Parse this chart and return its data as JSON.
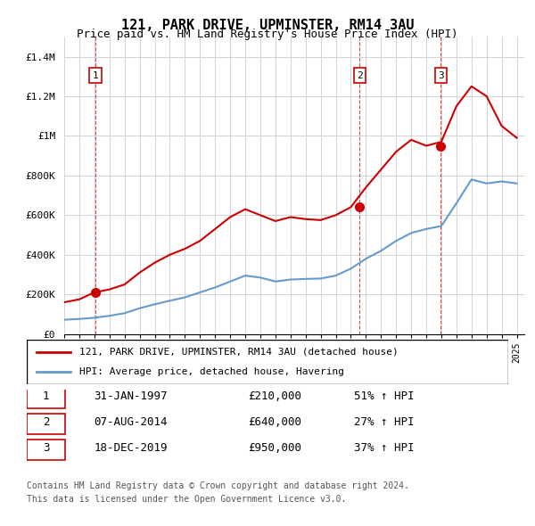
{
  "title": "121, PARK DRIVE, UPMINSTER, RM14 3AU",
  "subtitle": "Price paid vs. HM Land Registry's House Price Index (HPI)",
  "ylabel_ticks": [
    "£0",
    "£200K",
    "£400K",
    "£600K",
    "£800K",
    "£1M",
    "£1.2M",
    "£1.4M"
  ],
  "ytick_values": [
    0,
    200000,
    400000,
    600000,
    800000,
    1000000,
    1200000,
    1400000
  ],
  "ylim": [
    0,
    1500000
  ],
  "xlim_start": 1995.0,
  "xlim_end": 2025.5,
  "sale_dates": [
    1997.08,
    2014.58,
    2019.96
  ],
  "sale_prices": [
    210000,
    640000,
    950000
  ],
  "sale_labels": [
    "1",
    "2",
    "3"
  ],
  "hpi_color": "#6699cc",
  "sale_color": "#cc0000",
  "vline_color": "#cc0000",
  "legend_items": [
    {
      "label": "121, PARK DRIVE, UPMINSTER, RM14 3AU (detached house)",
      "color": "#cc0000"
    },
    {
      "label": "HPI: Average price, detached house, Havering",
      "color": "#6699cc"
    }
  ],
  "table_rows": [
    {
      "num": "1",
      "date": "31-JAN-1997",
      "price": "£210,000",
      "change": "51% ↑ HPI"
    },
    {
      "num": "2",
      "date": "07-AUG-2014",
      "price": "£640,000",
      "change": "27% ↑ HPI"
    },
    {
      "num": "3",
      "date": "18-DEC-2019",
      "price": "£950,000",
      "change": "37% ↑ HPI"
    }
  ],
  "footnote1": "Contains HM Land Registry data © Crown copyright and database right 2024.",
  "footnote2": "This data is licensed under the Open Government Licence v3.0.",
  "hpi_years": [
    1995,
    1996,
    1997,
    1998,
    1999,
    2000,
    2001,
    2002,
    2003,
    2004,
    2005,
    2006,
    2007,
    2008,
    2009,
    2010,
    2011,
    2012,
    2013,
    2014,
    2015,
    2016,
    2017,
    2018,
    2019,
    2020,
    2021,
    2022,
    2023,
    2024,
    2025
  ],
  "hpi_values": [
    72000,
    76000,
    82000,
    92000,
    105000,
    130000,
    150000,
    168000,
    185000,
    210000,
    235000,
    265000,
    295000,
    285000,
    265000,
    275000,
    278000,
    280000,
    295000,
    330000,
    380000,
    420000,
    470000,
    510000,
    530000,
    545000,
    660000,
    780000,
    760000,
    770000,
    760000
  ],
  "red_line_years": [
    1995,
    1996,
    1997,
    1998,
    1999,
    2000,
    2001,
    2002,
    2003,
    2004,
    2005,
    2006,
    2007,
    2008,
    2009,
    2010,
    2011,
    2012,
    2013,
    2014,
    2015,
    2016,
    2017,
    2018,
    2019,
    2020,
    2021,
    2022,
    2023,
    2024,
    2025
  ],
  "red_line_values": [
    160000,
    175000,
    210000,
    225000,
    250000,
    310000,
    360000,
    400000,
    430000,
    470000,
    530000,
    590000,
    630000,
    600000,
    570000,
    590000,
    580000,
    575000,
    600000,
    640000,
    740000,
    830000,
    920000,
    980000,
    950000,
    970000,
    1150000,
    1250000,
    1200000,
    1050000,
    990000
  ]
}
